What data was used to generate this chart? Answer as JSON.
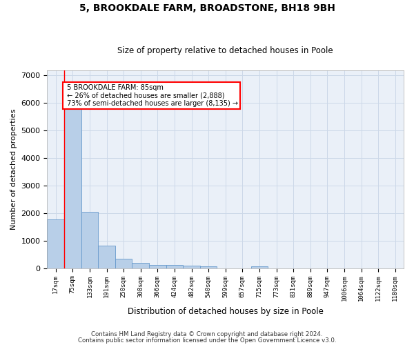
{
  "title1": "5, BROOKDALE FARM, BROADSTONE, BH18 9BH",
  "title2": "Size of property relative to detached houses in Poole",
  "xlabel": "Distribution of detached houses by size in Poole",
  "ylabel": "Number of detached properties",
  "bar_color": "#b8cfe8",
  "bar_edge_color": "#6699cc",
  "categories": [
    "17sqm",
    "75sqm",
    "133sqm",
    "191sqm",
    "250sqm",
    "308sqm",
    "366sqm",
    "424sqm",
    "482sqm",
    "540sqm",
    "599sqm",
    "657sqm",
    "715sqm",
    "773sqm",
    "831sqm",
    "889sqm",
    "947sqm",
    "1006sqm",
    "1064sqm",
    "1122sqm",
    "1180sqm"
  ],
  "values": [
    1780,
    5800,
    2060,
    830,
    340,
    185,
    130,
    115,
    100,
    80,
    0,
    0,
    70,
    0,
    0,
    0,
    0,
    0,
    0,
    0,
    0
  ],
  "ylim": [
    0,
    7200
  ],
  "yticks": [
    0,
    1000,
    2000,
    3000,
    4000,
    5000,
    6000,
    7000
  ],
  "property_label": "5 BROOKDALE FARM: 85sqm",
  "pct_smaller": 26,
  "n_smaller": 2888,
  "pct_larger_semi": 73,
  "n_larger_semi": 8135,
  "vline_x_idx": 1,
  "footer1": "Contains HM Land Registry data © Crown copyright and database right 2024.",
  "footer2": "Contains public sector information licensed under the Open Government Licence v3.0.",
  "grid_color": "#ccd8e8",
  "bg_color": "#eaf0f8"
}
